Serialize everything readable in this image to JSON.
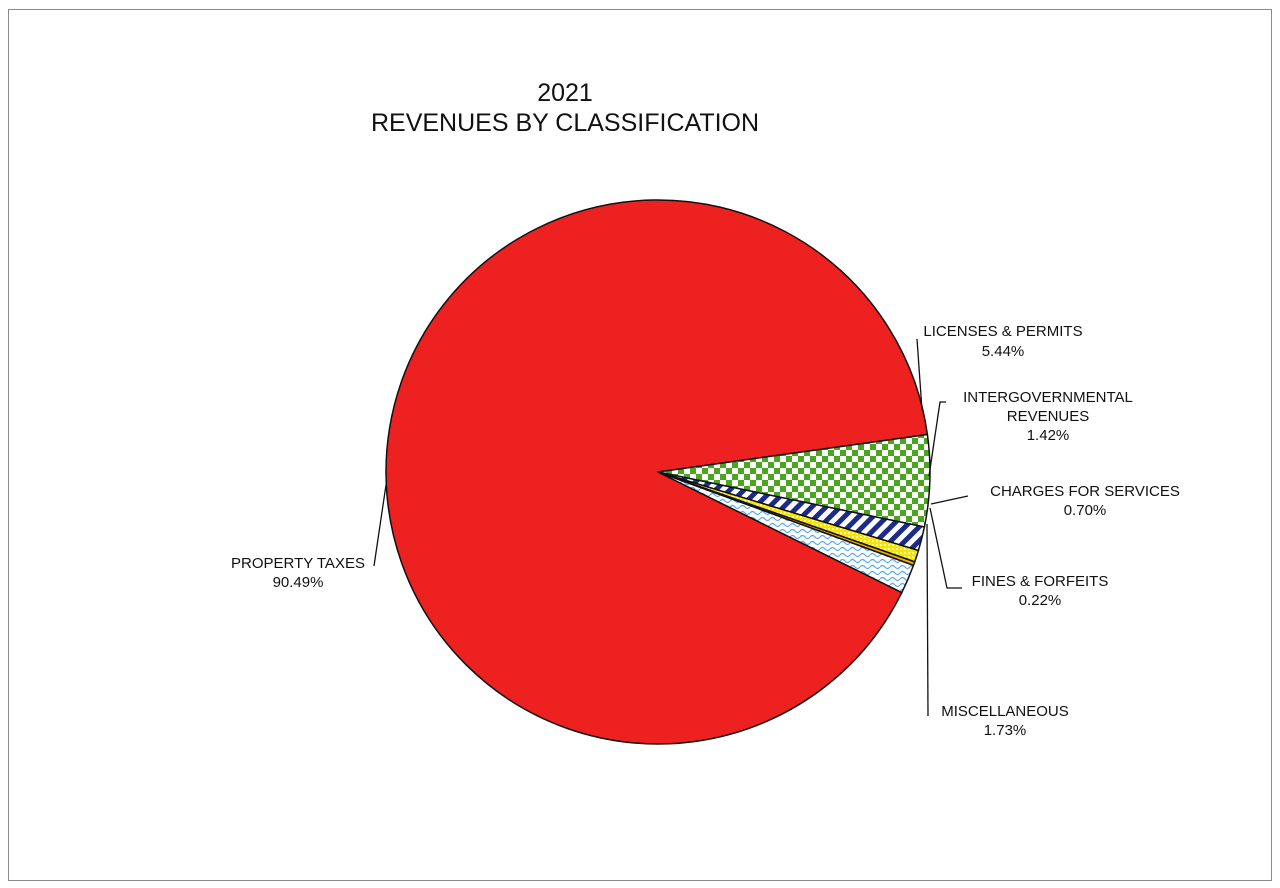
{
  "chart_data": {
    "type": "pie",
    "title_line1": "2021",
    "title_line2": "REVENUES BY CLASSIFICATION",
    "slices": [
      {
        "name": "PROPERTY TAXES",
        "value": 90.49,
        "pct": "90.49%",
        "color": "#ee2121",
        "pattern": "solid"
      },
      {
        "name": "LICENSES & PERMITS",
        "value": 5.44,
        "pct": "5.44%",
        "color": "#4aa61f",
        "pattern": "checker"
      },
      {
        "name": "INTERGOVERNMENTAL REVENUES",
        "value": 1.42,
        "pct": "1.42%",
        "color": "#1c2a8c",
        "pattern": "diagonal-stripes"
      },
      {
        "name": "CHARGES FOR SERVICES",
        "value": 0.7,
        "pct": "0.70%",
        "color": "#f2e40c",
        "pattern": "dotted"
      },
      {
        "name": "FINES & FORFEITS",
        "value": 0.22,
        "pct": "0.22%",
        "color": "#f0a800",
        "pattern": "solid"
      },
      {
        "name": "MISCELLANEOUS",
        "value": 1.73,
        "pct": "1.73%",
        "color": "#8ec8ee",
        "pattern": "wavy"
      }
    ]
  }
}
